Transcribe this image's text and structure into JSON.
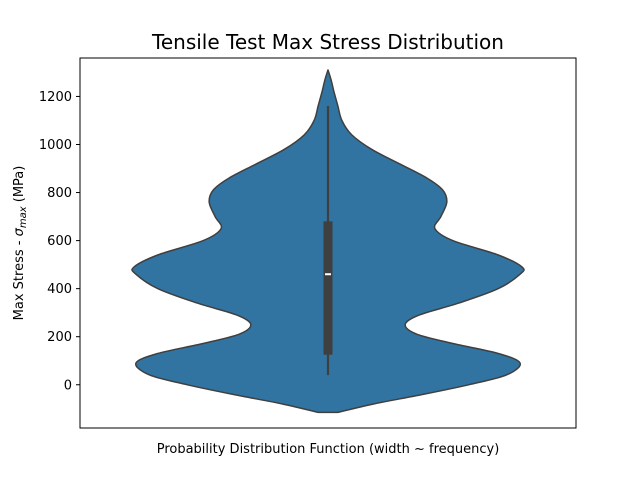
{
  "chart_data": {
    "type": "violin",
    "title": "Tensile Test Max Stress Distribution",
    "xlabel": "Probability Distribution Function (width ~ frequency)",
    "ylabel_prefix": "Max Stress - ",
    "ylabel_symbol": "σ",
    "ylabel_subscript": "max",
    "ylabel_suffix": " (MPa)",
    "ylim": [
      -180,
      1360
    ],
    "yticks": [
      0,
      200,
      400,
      600,
      800,
      1000,
      1200
    ],
    "grid": false,
    "violin_color": "#3274a1",
    "edge_color": "#3f3f3f",
    "density_profile": [
      {
        "y": -115,
        "density": 0.05
      },
      {
        "y": -80,
        "density": 0.23
      },
      {
        "y": -40,
        "density": 0.48
      },
      {
        "y": 0,
        "density": 0.71
      },
      {
        "y": 40,
        "density": 0.9
      },
      {
        "y": 90,
        "density": 0.97
      },
      {
        "y": 130,
        "density": 0.86
      },
      {
        "y": 170,
        "density": 0.64
      },
      {
        "y": 210,
        "density": 0.45
      },
      {
        "y": 250,
        "density": 0.39
      },
      {
        "y": 290,
        "density": 0.46
      },
      {
        "y": 340,
        "density": 0.66
      },
      {
        "y": 400,
        "density": 0.86
      },
      {
        "y": 460,
        "density": 0.97
      },
      {
        "y": 490,
        "density": 0.98
      },
      {
        "y": 540,
        "density": 0.86
      },
      {
        "y": 600,
        "density": 0.63
      },
      {
        "y": 650,
        "density": 0.54
      },
      {
        "y": 700,
        "density": 0.57
      },
      {
        "y": 760,
        "density": 0.6
      },
      {
        "y": 810,
        "density": 0.58
      },
      {
        "y": 860,
        "density": 0.5
      },
      {
        "y": 920,
        "density": 0.36
      },
      {
        "y": 980,
        "density": 0.22
      },
      {
        "y": 1040,
        "density": 0.12
      },
      {
        "y": 1100,
        "density": 0.07
      },
      {
        "y": 1160,
        "density": 0.05
      },
      {
        "y": 1220,
        "density": 0.03
      },
      {
        "y": 1270,
        "density": 0.015
      },
      {
        "y": 1310,
        "density": 0.0
      }
    ],
    "box": {
      "whisker_low": 40,
      "q1": 125,
      "median": 460,
      "q3": 680,
      "whisker_high": 1160
    }
  }
}
